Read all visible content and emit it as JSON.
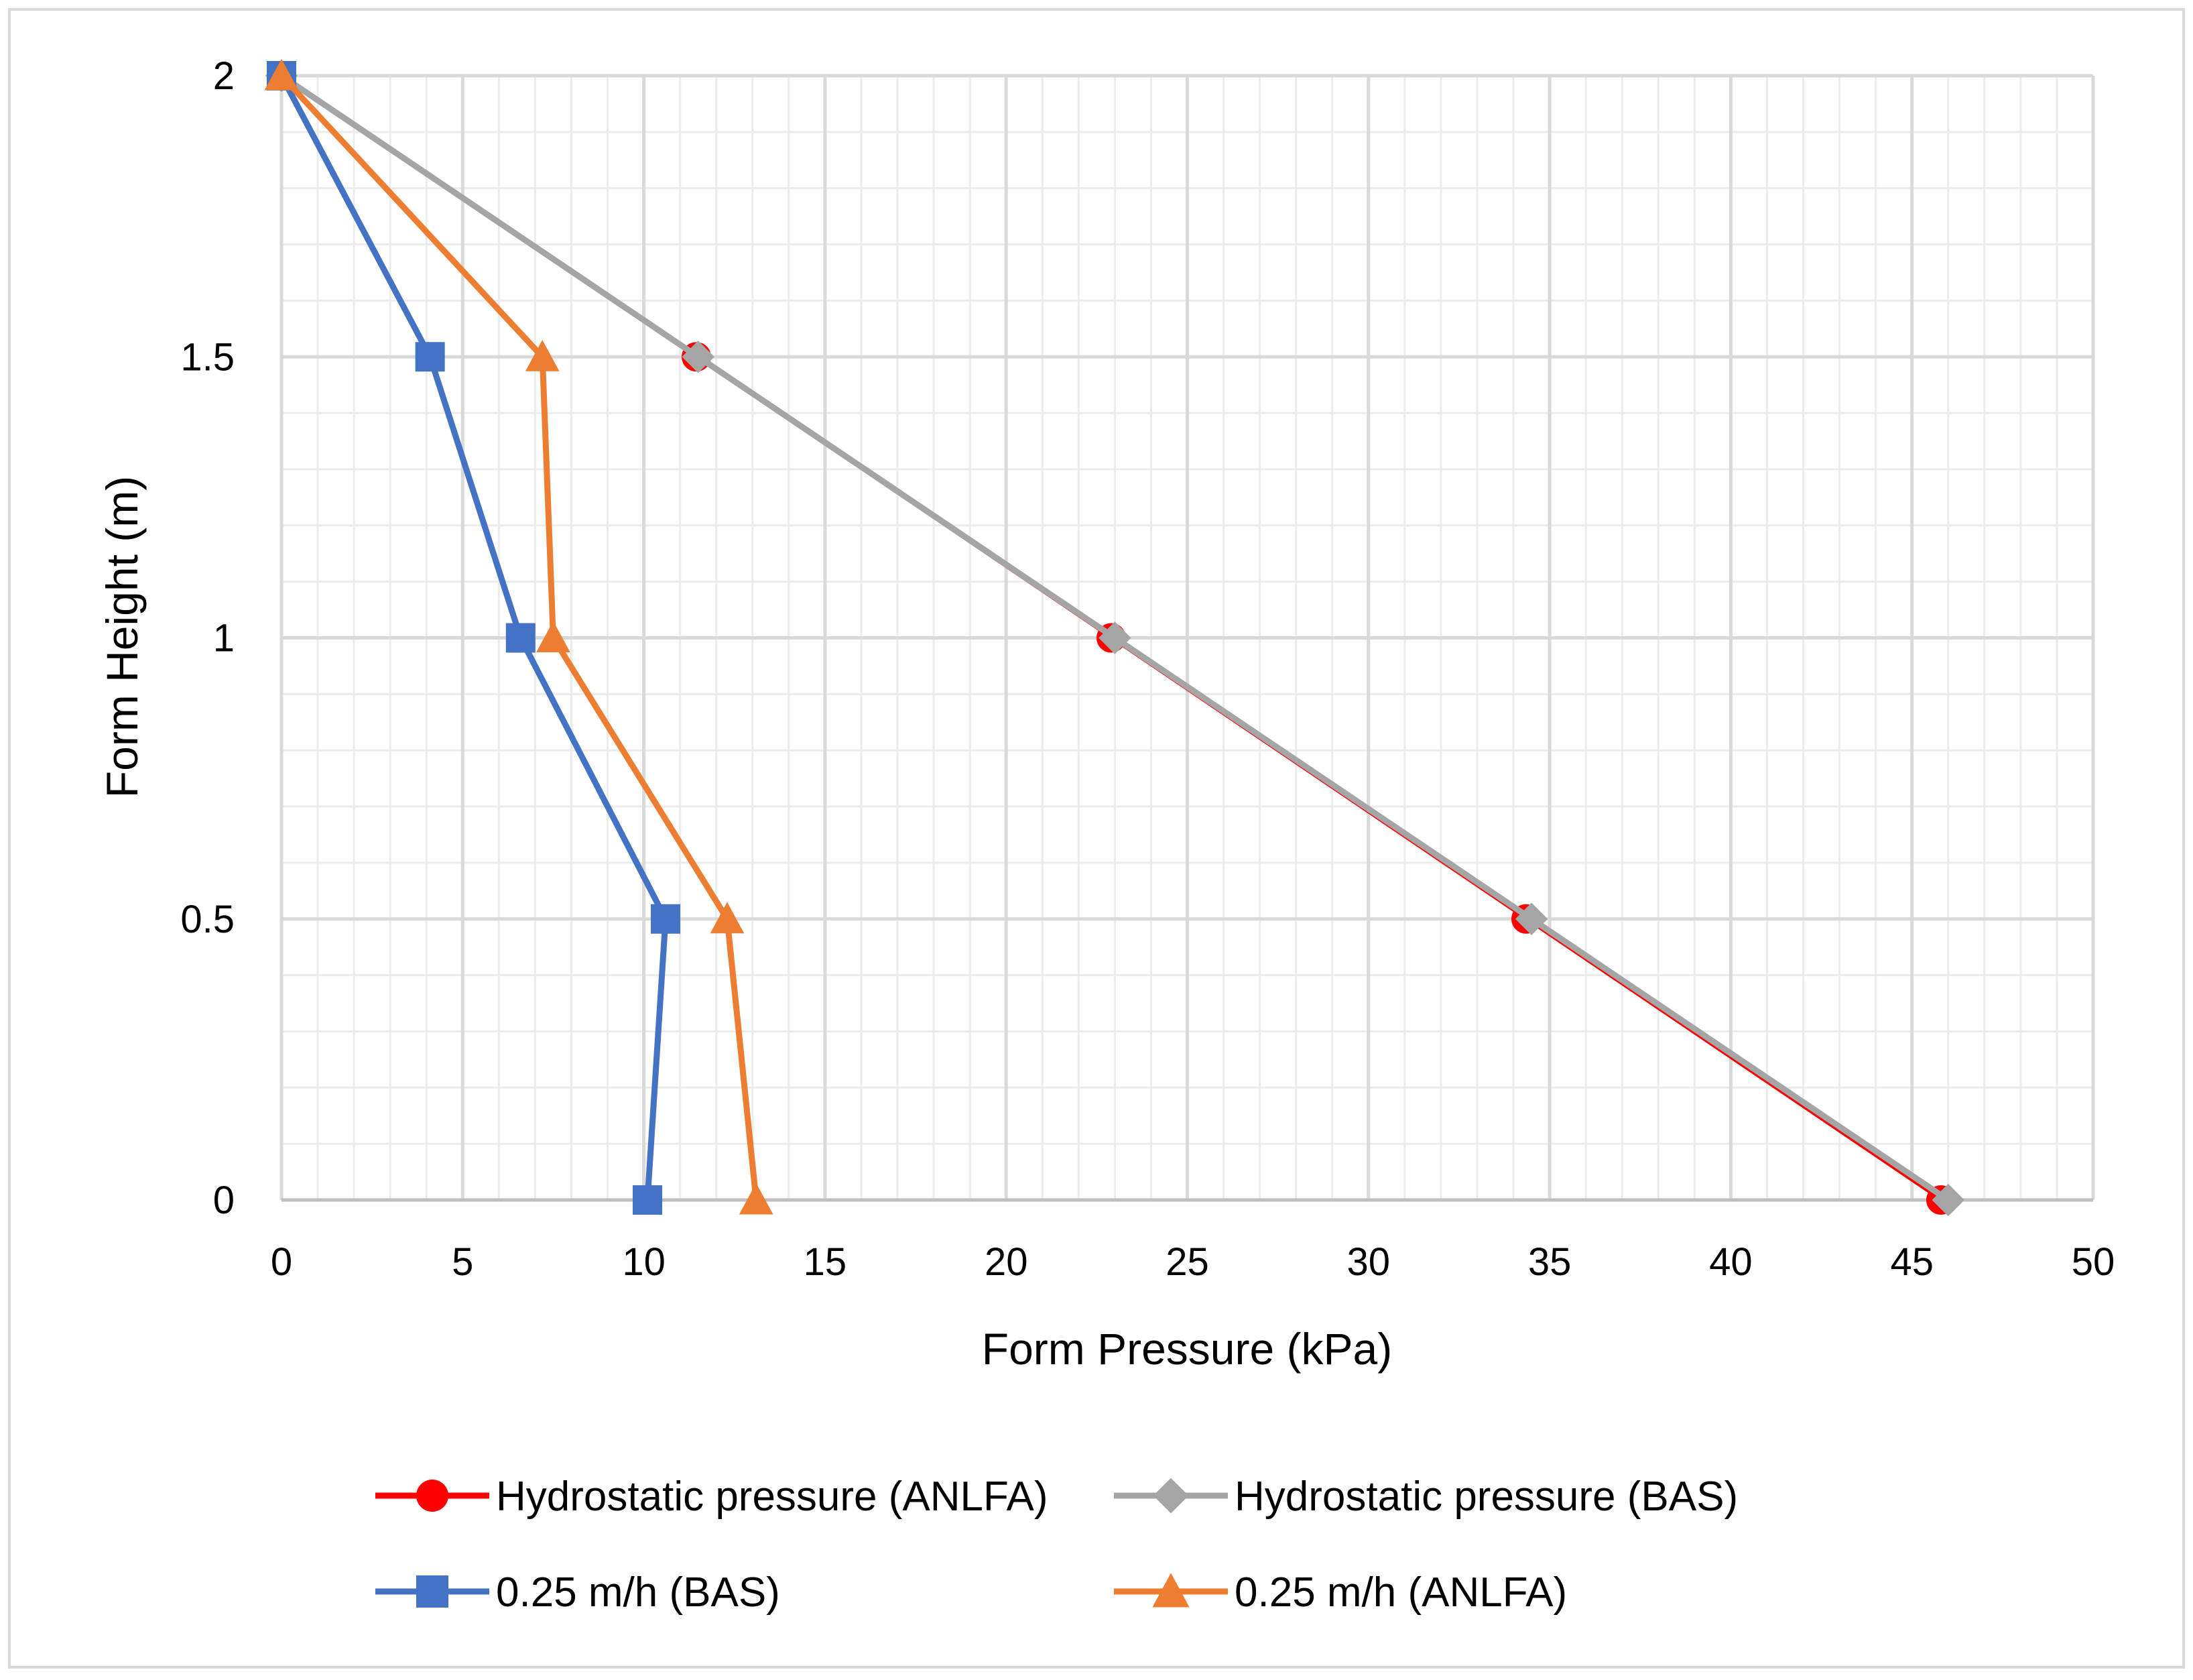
{
  "chart_data": {
    "type": "line",
    "title": "",
    "xlabel": "Form Pressure (kPa)",
    "ylabel": "Form Height (m)",
    "xlim": [
      0,
      50
    ],
    "ylim": [
      0,
      2
    ],
    "x_ticks": [
      0,
      5,
      10,
      15,
      20,
      25,
      30,
      35,
      40,
      45,
      50
    ],
    "y_ticks": [
      0,
      0.5,
      1,
      1.5,
      2
    ],
    "x_tick_labels": [
      "0",
      "5",
      "10",
      "15",
      "20",
      "25",
      "30",
      "35",
      "40",
      "45",
      "50"
    ],
    "y_tick_labels": [
      "0",
      "0.5",
      "1",
      "1.5",
      "2"
    ],
    "grid": "major and minor",
    "legend_position": "bottom",
    "series": [
      {
        "name": "Hydrostatic pressure (ANLFA)",
        "color": "#ff0000",
        "marker": "circle",
        "points": [
          [
            0,
            2
          ],
          [
            11.45,
            1.5
          ],
          [
            22.9,
            1
          ],
          [
            34.35,
            0.5
          ],
          [
            45.8,
            0
          ]
        ]
      },
      {
        "name": "Hydrostatic pressure (BAS)",
        "color": "#a5a5a5",
        "marker": "diamond",
        "points": [
          [
            0,
            2
          ],
          [
            11.5,
            1.5
          ],
          [
            23.0,
            1
          ],
          [
            34.5,
            0.5
          ],
          [
            46.0,
            0
          ]
        ]
      },
      {
        "name": "0.25 m/h (BAS)",
        "color": "#4472c4",
        "marker": "square",
        "points": [
          [
            0,
            2
          ],
          [
            4.1,
            1.5
          ],
          [
            6.6,
            1
          ],
          [
            10.6,
            0.5
          ],
          [
            10.1,
            0
          ]
        ]
      },
      {
        "name": "0.25 m/h (ANLFA)",
        "color": "#ed7d31",
        "marker": "triangle",
        "points": [
          [
            0,
            2
          ],
          [
            7.2,
            1.5
          ],
          [
            7.5,
            1
          ],
          [
            12.3,
            0.5
          ],
          [
            13.1,
            0
          ]
        ]
      }
    ]
  }
}
